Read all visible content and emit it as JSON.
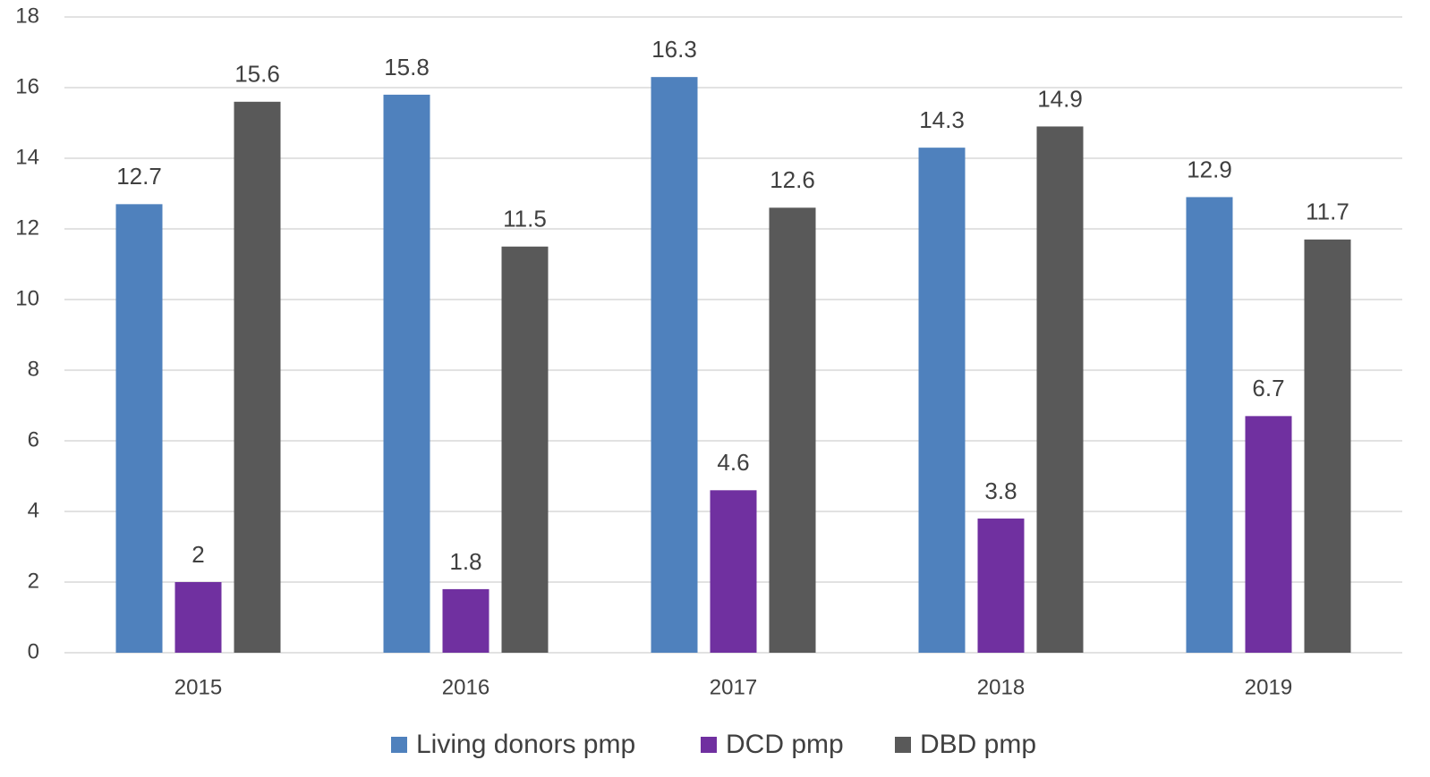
{
  "chart_data": {
    "type": "bar",
    "categories": [
      "2015",
      "2016",
      "2017",
      "2018",
      "2019"
    ],
    "series": [
      {
        "name": "Living donors pmp",
        "color": "#4f81bd",
        "values": [
          12.7,
          15.8,
          16.3,
          14.3,
          12.9
        ]
      },
      {
        "name": "DCD pmp",
        "color": "#7030a0",
        "values": [
          2,
          1.8,
          4.6,
          3.8,
          6.7
        ]
      },
      {
        "name": "DBD pmp",
        "color": "#595959",
        "values": [
          15.6,
          11.5,
          12.6,
          14.9,
          11.7
        ]
      }
    ],
    "ylim": [
      0,
      18
    ],
    "yticks": [
      0,
      2,
      4,
      6,
      8,
      10,
      12,
      14,
      16,
      18
    ],
    "grid": true,
    "legend": "bottom"
  }
}
